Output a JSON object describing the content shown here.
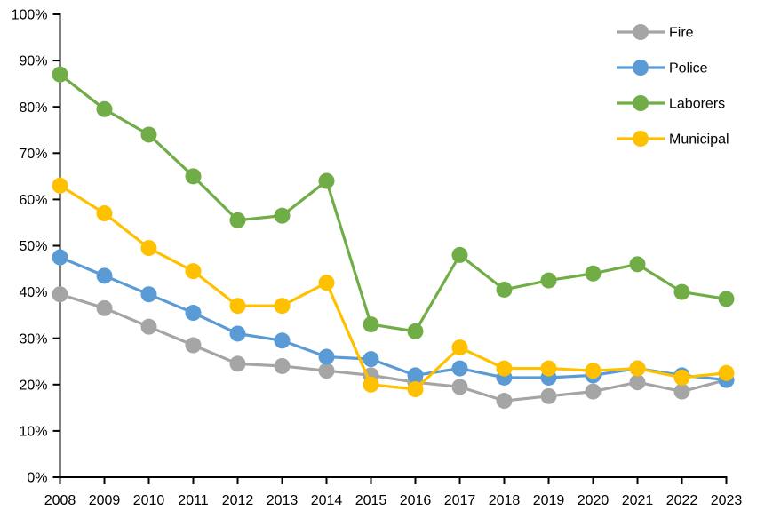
{
  "chart_data": {
    "type": "line",
    "title": "",
    "x": [
      "2008",
      "2009",
      "2010",
      "2011",
      "2012",
      "2013",
      "2014",
      "2015",
      "2016",
      "2017",
      "2018",
      "2019",
      "2020",
      "2021",
      "2022",
      "2023"
    ],
    "xlabel": "",
    "ylabel": "",
    "ylim": [
      0,
      100
    ],
    "ytick_step": 10,
    "ytick_suffix": "%",
    "grid": false,
    "legend_position": "top-right",
    "axis_color": "#000000",
    "background_color": "#ffffff",
    "marker_style": "circle",
    "series": [
      {
        "name": "Fire",
        "color": "#A5A5A5",
        "values": [
          39.5,
          36.5,
          32.5,
          28.5,
          24.5,
          24,
          23,
          22,
          20.5,
          19.5,
          16.5,
          17.5,
          18.5,
          20.5,
          18.5,
          21
        ]
      },
      {
        "name": "Police",
        "color": "#5B9BD5",
        "values": [
          47.5,
          43.5,
          39.5,
          35.5,
          31,
          29.5,
          26,
          25.5,
          22,
          23.5,
          21.5,
          21.5,
          22,
          23.5,
          22,
          21
        ]
      },
      {
        "name": "Laborers",
        "color": "#70AD47",
        "values": [
          87,
          79.5,
          74,
          65,
          55.5,
          56.5,
          64,
          33,
          31.5,
          48,
          40.5,
          42.5,
          44,
          46,
          40,
          38.5
        ]
      },
      {
        "name": "Municipal",
        "color": "#FFC000",
        "values": [
          63,
          57,
          49.5,
          44.5,
          37,
          37,
          42,
          20,
          19,
          28,
          23.5,
          23.5,
          23,
          23.5,
          21.5,
          22.5
        ]
      }
    ]
  }
}
